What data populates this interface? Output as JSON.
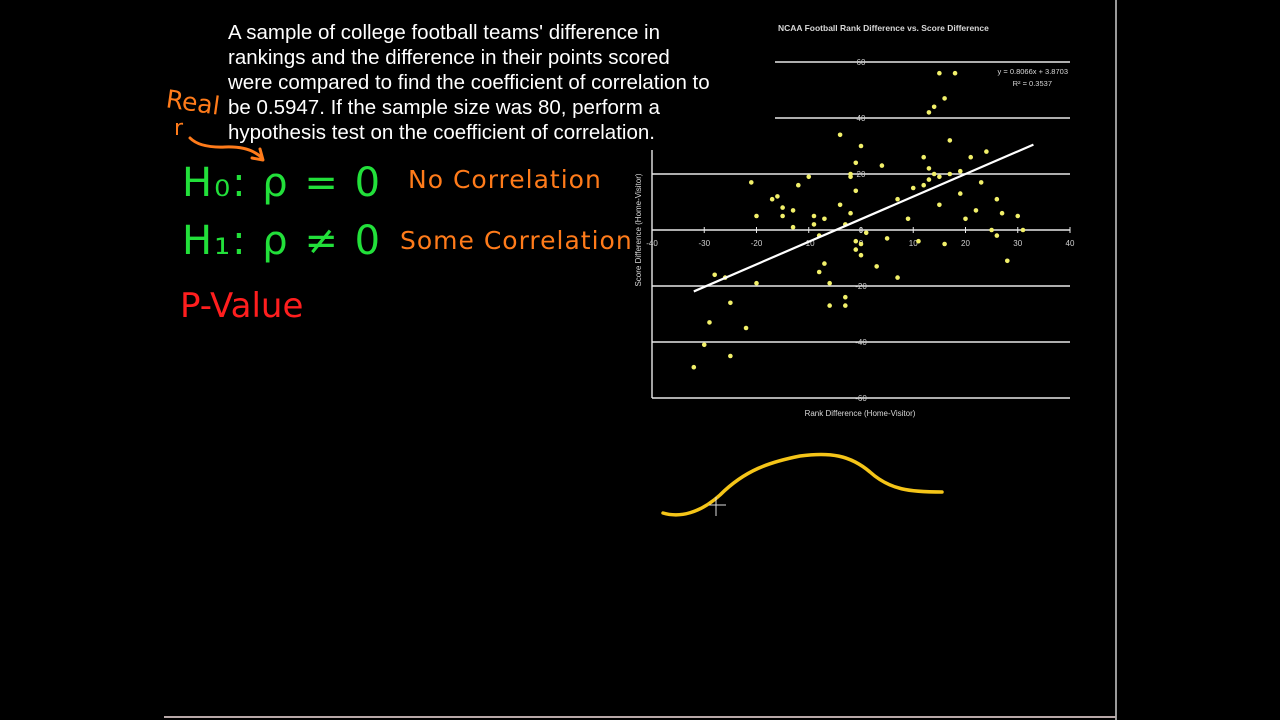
{
  "problem": {
    "lines": [
      "A sample of college football teams' difference in",
      "rankings and the difference in their points scored",
      "were compared to find the coefficient of correlation to",
      "be 0.5947.  If the sample size was 80, perform a",
      "hypothesis test on the coefficient of correlation."
    ]
  },
  "annotations": {
    "real_r_label": "Real",
    "r_label": "r",
    "h0": "H₀: ρ = 0",
    "h0_meaning": "No Correlation",
    "h1": "H₁: ρ ≠ 0",
    "h1_meaning": "Some Correlation",
    "pvalue": "P-Value"
  },
  "colors": {
    "background": "#000000",
    "hypothesis": "#22e03a",
    "meaning": "#ff7b1a",
    "pvalue": "#ff1e1e",
    "points": "#f2f06a",
    "curve": "#f5c518",
    "grid": "#ffffff"
  },
  "chart_data": {
    "type": "scatter",
    "title": "NCAA Football Rank Difference vs. Score Difference",
    "xlabel": "Rank Difference (Home-Visitor)",
    "ylabel": "Score Difference (Home-Visitor)",
    "xlim": [
      -40,
      40
    ],
    "ylim": [
      -60,
      60
    ],
    "x_ticks": [
      "-40",
      "-30",
      "-20",
      "-10",
      "0",
      "10",
      "20",
      "30",
      "40"
    ],
    "y_ticks": [
      "60",
      "40",
      "20",
      "0",
      "-20",
      "-40",
      "-60"
    ],
    "grid": "horizontal",
    "trendline": {
      "equation": "y = 0.8066x + 3.8703",
      "r_squared": "R² = 0.3537",
      "slope": 0.8066,
      "intercept": 3.8703
    },
    "points": [
      [
        -32,
        -49
      ],
      [
        -30,
        -41
      ],
      [
        -29,
        -33
      ],
      [
        -25,
        -26
      ],
      [
        -25,
        -45
      ],
      [
        -22,
        -35
      ],
      [
        -28,
        -16
      ],
      [
        -26,
        -17
      ],
      [
        -20,
        -19
      ],
      [
        -21,
        17
      ],
      [
        -20,
        5
      ],
      [
        -17,
        11
      ],
      [
        -16,
        12
      ],
      [
        -15,
        8
      ],
      [
        -15,
        5
      ],
      [
        -13,
        7
      ],
      [
        -13,
        1
      ],
      [
        -12,
        16
      ],
      [
        -10,
        19
      ],
      [
        -9,
        5
      ],
      [
        -9,
        2
      ],
      [
        -8,
        -2
      ],
      [
        -8,
        -15
      ],
      [
        -7,
        -12
      ],
      [
        -7,
        4
      ],
      [
        -6,
        -19
      ],
      [
        -6,
        -27
      ],
      [
        -4,
        9
      ],
      [
        -3,
        2
      ],
      [
        -2,
        19
      ],
      [
        -2,
        20
      ],
      [
        -1,
        24
      ],
      [
        -1,
        14
      ],
      [
        -1,
        -7
      ],
      [
        -1,
        -4
      ],
      [
        -2,
        6
      ],
      [
        0,
        -9
      ],
      [
        0,
        -5
      ],
      [
        -3,
        -24
      ],
      [
        -3,
        -27
      ],
      [
        0,
        30
      ],
      [
        -4,
        34
      ],
      [
        1,
        -1
      ],
      [
        3,
        -13
      ],
      [
        4,
        23
      ],
      [
        5,
        -3
      ],
      [
        7,
        -17
      ],
      [
        7,
        11
      ],
      [
        9,
        4
      ],
      [
        10,
        15
      ],
      [
        12,
        16
      ],
      [
        12,
        26
      ],
      [
        11,
        -4
      ],
      [
        13,
        42
      ],
      [
        13,
        22
      ],
      [
        13,
        18
      ],
      [
        14,
        44
      ],
      [
        14,
        20
      ],
      [
        15,
        19
      ],
      [
        15,
        9
      ],
      [
        15,
        56
      ],
      [
        16,
        47
      ],
      [
        16,
        -5
      ],
      [
        17,
        32
      ],
      [
        17,
        20
      ],
      [
        18,
        56
      ],
      [
        19,
        21
      ],
      [
        19,
        13
      ],
      [
        20,
        4
      ],
      [
        21,
        26
      ],
      [
        22,
        7
      ],
      [
        23,
        17
      ],
      [
        24,
        28
      ],
      [
        26,
        11
      ],
      [
        27,
        6
      ],
      [
        25,
        0
      ],
      [
        26,
        -2
      ],
      [
        28,
        -11
      ],
      [
        30,
        5
      ],
      [
        31,
        0
      ]
    ]
  },
  "sketch": {
    "shape": "bell-curve (hand-drawn)"
  }
}
